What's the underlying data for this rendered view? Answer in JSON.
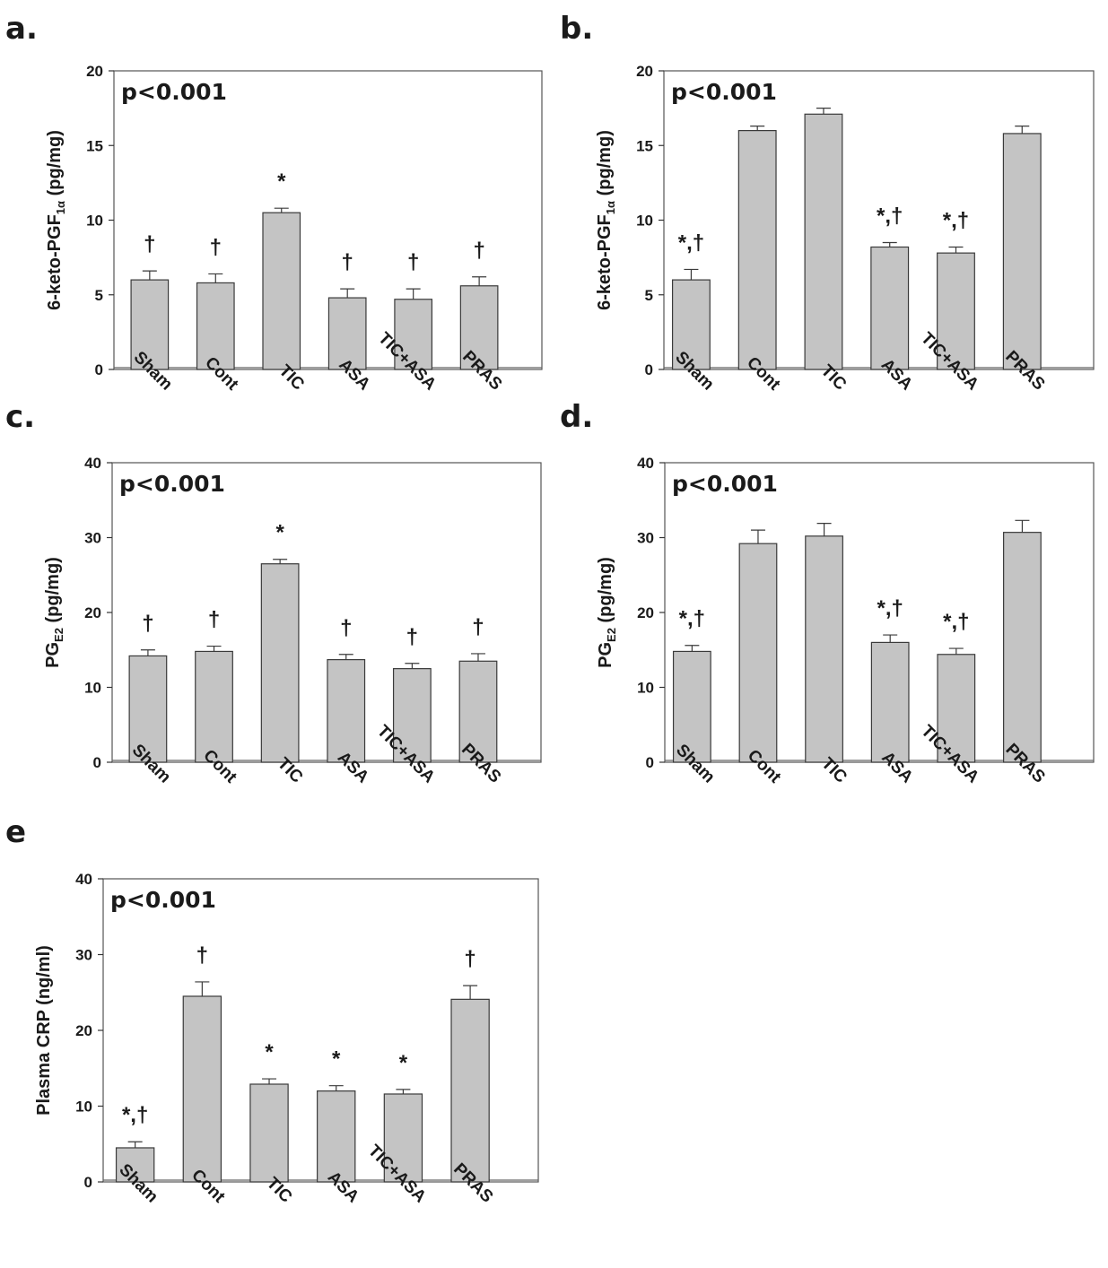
{
  "chart_data": [
    {
      "panel": "a.",
      "type": "bar",
      "categories": [
        "Sham",
        "Cont",
        "TIC",
        "ASA",
        "TIC+ASA",
        "PRAS"
      ],
      "values": [
        6.0,
        5.8,
        10.5,
        4.8,
        4.7,
        5.6
      ],
      "errors": [
        0.6,
        0.6,
        0.3,
        0.6,
        0.7,
        0.6
      ],
      "annotations": [
        "†",
        "†",
        "*",
        "†",
        "†",
        "†"
      ],
      "ylabel_main": "6-keto-PGF",
      "ylabel_sub": "1α",
      "ylabel_unit": " (pg/mg)",
      "ylim": [
        0,
        20
      ],
      "yticks": [
        0,
        5,
        10,
        15,
        20
      ],
      "pvalue": "p<0.001"
    },
    {
      "panel": "b.",
      "type": "bar",
      "categories": [
        "Sham",
        "Cont",
        "TIC",
        "ASA",
        "TIC+ASA",
        "PRAS"
      ],
      "values": [
        6.0,
        16.0,
        17.1,
        8.2,
        7.8,
        15.8
      ],
      "errors": [
        0.7,
        0.3,
        0.4,
        0.3,
        0.4,
        0.5
      ],
      "annotations": [
        "*,†",
        "",
        "",
        "*,†",
        "*,†",
        ""
      ],
      "ylabel_main": "6-keto-PGF",
      "ylabel_sub": "1α",
      "ylabel_unit": " (pg/mg)",
      "ylim": [
        0,
        20
      ],
      "yticks": [
        0,
        5,
        10,
        15,
        20
      ],
      "pvalue": "p<0.001"
    },
    {
      "panel": "c.",
      "type": "bar",
      "categories": [
        "Sham",
        "Cont",
        "TIC",
        "ASA",
        "TIC+ASA",
        "PRAS"
      ],
      "values": [
        14.2,
        14.8,
        26.5,
        13.7,
        12.5,
        13.5
      ],
      "errors": [
        0.8,
        0.7,
        0.6,
        0.7,
        0.7,
        1.0
      ],
      "annotations": [
        "†",
        "†",
        "*",
        "†",
        "†",
        "†"
      ],
      "ylabel_main": "PG",
      "ylabel_sub": "E2",
      "ylabel_unit": " (pg/mg)",
      "ylim": [
        0,
        40
      ],
      "yticks": [
        0,
        10,
        20,
        30,
        40
      ],
      "pvalue": "p<0.001"
    },
    {
      "panel": "d.",
      "type": "bar",
      "categories": [
        "Sham",
        "Cont",
        "TIC",
        "ASA",
        "TIC+ASA",
        "PRAS"
      ],
      "values": [
        14.8,
        29.2,
        30.2,
        16.0,
        14.4,
        30.7
      ],
      "errors": [
        0.8,
        1.8,
        1.7,
        1.0,
        0.8,
        1.6
      ],
      "annotations": [
        "*,†",
        "",
        "",
        "*,†",
        "*,†",
        ""
      ],
      "ylabel_main": "PG",
      "ylabel_sub": "E2",
      "ylabel_unit": " (pg/mg)",
      "ylim": [
        0,
        40
      ],
      "yticks": [
        0,
        10,
        20,
        30,
        40
      ],
      "pvalue": "p<0.001"
    },
    {
      "panel": "e",
      "type": "bar",
      "categories": [
        "Sham",
        "Cont",
        "TIC",
        "ASA",
        "TIC+ASA",
        "PRAS"
      ],
      "values": [
        4.5,
        24.5,
        12.9,
        12.0,
        11.6,
        24.1
      ],
      "errors": [
        0.8,
        1.9,
        0.7,
        0.7,
        0.6,
        1.8
      ],
      "annotations": [
        "*,†",
        "†",
        "*",
        "*",
        "*",
        "†"
      ],
      "ylabel_main": "Plasma CRP (ng/ml)",
      "ylabel_sub": "",
      "ylabel_unit": "",
      "ylim": [
        0,
        40
      ],
      "yticks": [
        0,
        10,
        20,
        30,
        40
      ],
      "pvalue": "p<0.001"
    }
  ]
}
